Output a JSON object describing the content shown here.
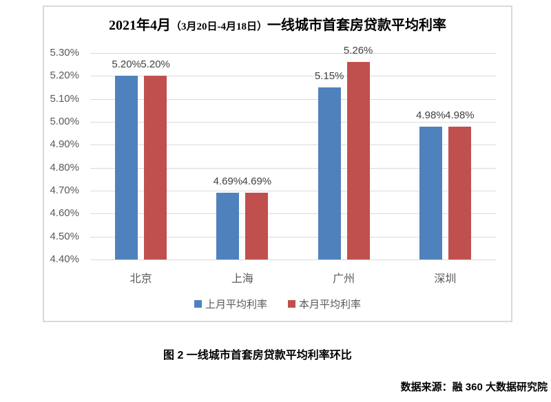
{
  "chart": {
    "title": {
      "part1": "2021年4月",
      "paren": "（3月20日-4月18日）",
      "part2": "一线城市首套房贷款平均利率"
    }
  },
  "chart_data": {
    "type": "bar",
    "title": "2021年4月（3月20日-4月18日）一线城市首套房贷款平均利率",
    "categories": [
      "北京",
      "上海",
      "广州",
      "深圳"
    ],
    "series": [
      {
        "name": "上月平均利率",
        "color": "#4F81BD",
        "values": [
          5.2,
          4.69,
          5.15,
          4.98
        ],
        "labels": [
          "5.20%",
          "4.69%",
          "5.15%",
          "4.98%"
        ]
      },
      {
        "name": "本月平均利率",
        "color": "#C0504D",
        "values": [
          5.2,
          4.69,
          5.26,
          4.98
        ],
        "labels": [
          "5.20%",
          "4.69%",
          "5.26%",
          "4.98%"
        ]
      }
    ],
    "ylim": [
      4.4,
      5.3
    ],
    "ytick_step": 0.1,
    "ytick_labels": [
      "4.40%",
      "4.50%",
      "4.60%",
      "4.70%",
      "4.80%",
      "4.90%",
      "5.00%",
      "5.10%",
      "5.20%",
      "5.30%"
    ],
    "grid": true,
    "legend_position": "bottom",
    "colors": {
      "gridline": "#D9D9D9",
      "axis_text": "#595959",
      "value_label_text": "#404040",
      "chart_border": "#D9D9D9"
    }
  },
  "caption": "图 2  一线城市首套房贷款平均利率环比",
  "source": "数据来源：融 360 大数据研究院"
}
